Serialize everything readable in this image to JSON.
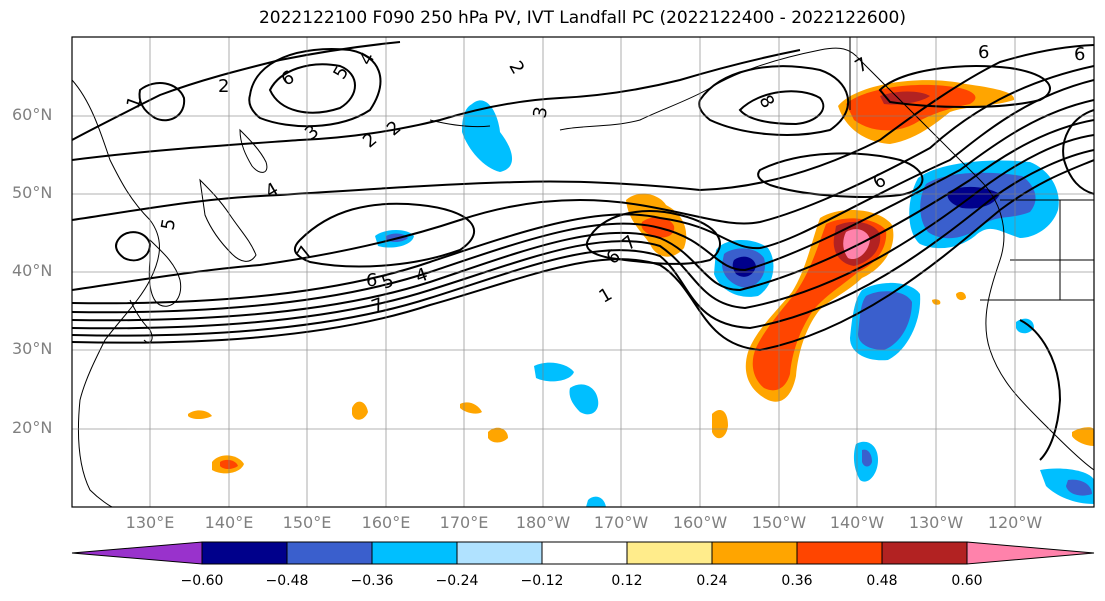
{
  "title": "2022122100 F090 250 hPa PV, IVT Landfall PC (2022122400 - 2022122600)",
  "lat_labels": [
    "60°N",
    "50°N",
    "40°N",
    "30°N",
    "20°N"
  ],
  "lon_labels": [
    "130°E",
    "140°E",
    "150°E",
    "160°E",
    "170°E",
    "180°W",
    "170°W",
    "160°W",
    "150°W",
    "140°W",
    "130°W",
    "120°W"
  ],
  "colorbar": {
    "ticks": [
      "−0.60",
      "−0.48",
      "−0.36",
      "−0.24",
      "−0.12",
      "0.12",
      "0.24",
      "0.36",
      "0.48",
      "0.60"
    ],
    "colors": [
      "#9932CC",
      "#00008B",
      "#3A5FCD",
      "#00BFFF",
      "#B0E2FF",
      "#FFFFFF",
      "#FFEC8B",
      "#FFA500",
      "#FF4500",
      "#B22222",
      "#FF82AB"
    ]
  },
  "contour_labels": {
    "c1": "1",
    "c2": "2",
    "c3": "3",
    "c4": "4",
    "c5": "5",
    "c6": "6",
    "c7": "7",
    "c8": "8"
  }
}
